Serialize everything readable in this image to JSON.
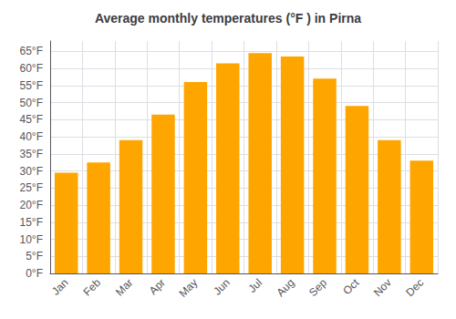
{
  "chart_data": {
    "type": "bar",
    "title": "Average monthly temperatures (°F ) in Pirna",
    "categories": [
      "Jan",
      "Feb",
      "Mar",
      "Apr",
      "May",
      "Jun",
      "Jul",
      "Aug",
      "Sep",
      "Oct",
      "Nov",
      "Dec"
    ],
    "values": [
      29.5,
      32.5,
      39.0,
      46.5,
      56.0,
      61.5,
      64.5,
      63.5,
      57.0,
      49.0,
      39.0,
      33.0
    ],
    "color": "#FFA500",
    "ylim": [
      0,
      68
    ],
    "yticks": [
      {
        "value": 0,
        "label": "0°F"
      },
      {
        "value": 5,
        "label": "5°F"
      },
      {
        "value": 10,
        "label": "10°F"
      },
      {
        "value": 15,
        "label": "15°F"
      },
      {
        "value": 20,
        "label": "20°F"
      },
      {
        "value": 25,
        "label": "25°F"
      },
      {
        "value": 30,
        "label": "30°F"
      },
      {
        "value": 35,
        "label": "35°F"
      },
      {
        "value": 40,
        "label": "40°F"
      },
      {
        "value": 45,
        "label": "45°F"
      },
      {
        "value": 50,
        "label": "50°F"
      },
      {
        "value": 55,
        "label": "55°F"
      },
      {
        "value": 60,
        "label": "60°F"
      },
      {
        "value": 65,
        "label": "65°F"
      }
    ],
    "grid": true
  }
}
